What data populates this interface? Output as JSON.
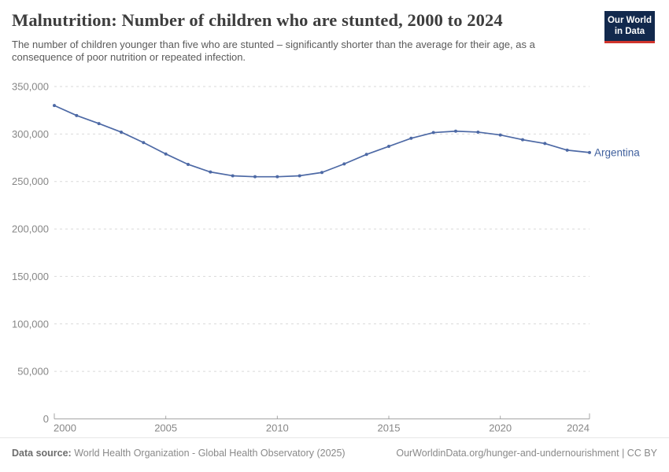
{
  "header": {
    "title": "Malnutrition: Number of children who are stunted, 2000 to 2024",
    "subtitle": "The number of children younger than five who are stunted – significantly shorter than the average for their age, as a consequence of poor nutrition or repeated infection.",
    "logo": {
      "line1": "Our World",
      "line2": "in Data"
    }
  },
  "chart_data": {
    "type": "line",
    "title": "Malnutrition: Number of children who are stunted, 2000 to 2024",
    "xlabel": "",
    "ylabel": "",
    "entity_label": "Argentina",
    "x": [
      2000,
      2001,
      2002,
      2003,
      2004,
      2005,
      2006,
      2007,
      2008,
      2009,
      2010,
      2011,
      2012,
      2013,
      2014,
      2015,
      2016,
      2017,
      2018,
      2019,
      2020,
      2021,
      2022,
      2023,
      2024
    ],
    "series": [
      {
        "name": "Argentina",
        "values": [
          330000,
          319500,
          311000,
          302000,
          291000,
          279000,
          268000,
          260000,
          256000,
          255000,
          255000,
          256000,
          259500,
          268500,
          278500,
          287000,
          295500,
          301500,
          303000,
          302000,
          299000,
          294000,
          290000,
          283000,
          280500
        ]
      }
    ],
    "xlim": [
      2000,
      2024
    ],
    "ylim": [
      0,
      350000
    ],
    "xticks": [
      2000,
      2005,
      2010,
      2015,
      2020,
      2024
    ],
    "yticks": [
      0,
      50000,
      100000,
      150000,
      200000,
      250000,
      300000,
      350000
    ],
    "grid": "horizontal-dashed",
    "marker": "circle",
    "legend_position": "end-of-line-label"
  },
  "footer": {
    "data_source_label": "Data source:",
    "data_source_value": "World Health Organization - Global Health Observatory (2025)",
    "attribution": "OurWorldinData.org/hunger-and-undernourishment | CC BY"
  },
  "colors": {
    "line": "#4d69a5",
    "entity_label": "#41619e",
    "grid": "#d9d9d9",
    "axis": "#a5a5a5",
    "tick_label": "#878787",
    "title": "#3d3d3d",
    "subtitle": "#5a5a5a",
    "footer_text": "#898989",
    "footer_label": "#6d6d6d",
    "logo_bg": "#12294d",
    "logo_stripe": "#d0342c"
  }
}
